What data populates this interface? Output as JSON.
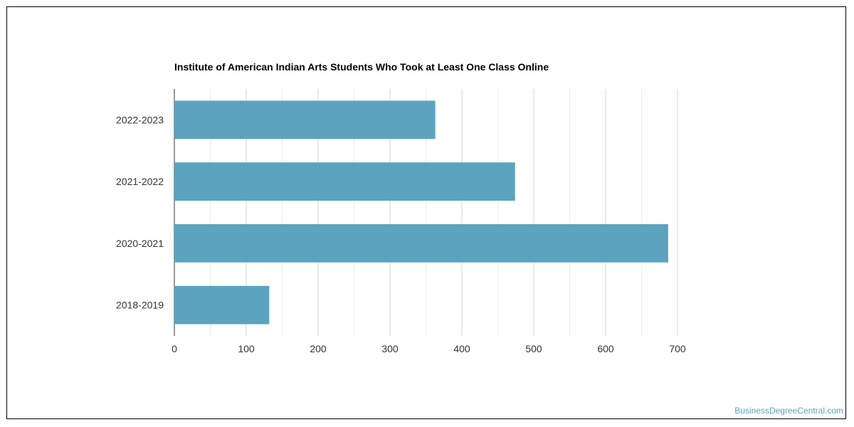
{
  "chart_data": {
    "type": "bar",
    "orientation": "horizontal",
    "title": "Institute of American Indian Arts Students Who Took at Least One Class Online",
    "xlabel": "",
    "ylabel": "",
    "categories": [
      "2022-2023",
      "2021-2022",
      "2020-2021",
      "2018-2019"
    ],
    "values": [
      363,
      474,
      687,
      132
    ],
    "xlim": [
      0,
      700
    ],
    "x_ticks": [
      0,
      100,
      200,
      300,
      400,
      500,
      600,
      700
    ],
    "grid": true,
    "legend": "none",
    "bar_color": "#5ba3bf"
  },
  "watermark": "BusinessDegreeCentral.com"
}
